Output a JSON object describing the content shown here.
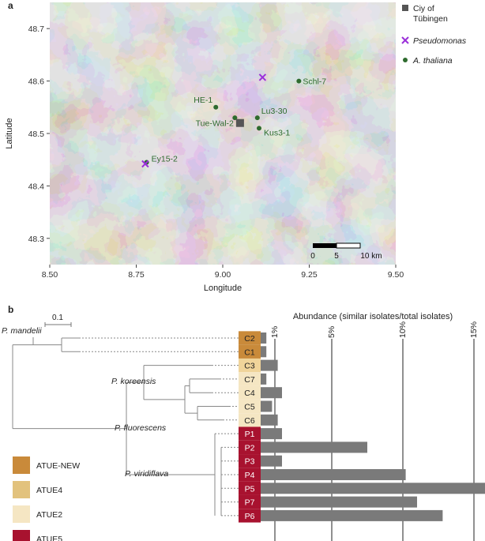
{
  "panel_a": {
    "label": "a",
    "chart_data": {
      "type": "scatter",
      "xlabel": "Longitude",
      "ylabel": "Latitude",
      "xlim": [
        8.5,
        9.5
      ],
      "ylim": [
        48.25,
        48.75
      ],
      "x_ticks": [
        "8.50",
        "8.75",
        "9.00",
        "9.25",
        "9.50"
      ],
      "y_ticks": [
        "48.3",
        "48.4",
        "48.5",
        "48.6",
        "48.7"
      ],
      "legend_position": "right",
      "legend": [
        {
          "name": "Ciy of",
          "name2": "Tübingen",
          "marker": "square",
          "color": "#555555"
        },
        {
          "name": "Pseudomonas",
          "marker": "cross",
          "color": "#9b30d9",
          "italic": true
        },
        {
          "name": "A. thaliana",
          "marker": "circle",
          "color": "#2e6b2e",
          "italic": true
        }
      ],
      "city": {
        "name": "Tue-Wal-2",
        "x": 9.05,
        "y": 48.52
      },
      "pseudomonas": [
        {
          "x": 9.115,
          "y": 48.607
        },
        {
          "x": 8.776,
          "y": 48.442
        }
      ],
      "thaliana": [
        {
          "name": "Schl-7",
          "x": 9.22,
          "y": 48.6
        },
        {
          "name": "HE-1",
          "x": 8.98,
          "y": 48.55
        },
        {
          "name": "Lu3-30",
          "x": 9.1,
          "y": 48.53
        },
        {
          "name": "",
          "x": 9.035,
          "y": 48.53
        },
        {
          "name": "Kus3-1",
          "x": 9.105,
          "y": 48.51
        },
        {
          "name": "Ey15-2",
          "x": 8.78,
          "y": 48.445
        }
      ],
      "scale_bar": {
        "labels": [
          "0",
          "5",
          "10 km"
        ]
      }
    }
  },
  "panel_b": {
    "label": "b",
    "scale_label": "0.1",
    "chart_data": {
      "type": "bar",
      "title": "Abundance (similar isolates/total isolates)",
      "ticks": [
        "1%",
        "5%",
        "10%",
        "15%"
      ],
      "tick_values": [
        1,
        5,
        10,
        15
      ],
      "xlim": [
        0,
        15.5
      ],
      "categories": [
        "C2",
        "C1",
        "C3",
        "C7",
        "C4",
        "C5",
        "C6",
        "P1",
        "P2",
        "P3",
        "P4",
        "P5",
        "P7",
        "P6"
      ],
      "values": [
        0.4,
        0.4,
        1.2,
        0.4,
        1.5,
        0.8,
        1.2,
        1.5,
        7.5,
        1.5,
        10.2,
        16.0,
        11.0,
        12.8
      ],
      "tip_colors": [
        "#c98a3a",
        "#c98a3a",
        "#f0d49a",
        "#f5e6c3",
        "#f5e6c3",
        "#f5e6c3",
        "#f5e6c3",
        "#a8122f",
        "#a8122f",
        "#a8122f",
        "#a8122f",
        "#a8122f",
        "#a8122f",
        "#a8122f"
      ]
    },
    "clade_labels": [
      "P. mandelii",
      "P. koreensis",
      "P. fluorescens",
      "P. viridiflava"
    ],
    "legend": [
      {
        "name": "ATUE-NEW",
        "color": "#c98a3a"
      },
      {
        "name": "ATUE4",
        "color": "#e2c27d"
      },
      {
        "name": "ATUE2",
        "color": "#f5e6c3"
      },
      {
        "name": "ATUE5",
        "color": "#a8122f"
      }
    ]
  }
}
